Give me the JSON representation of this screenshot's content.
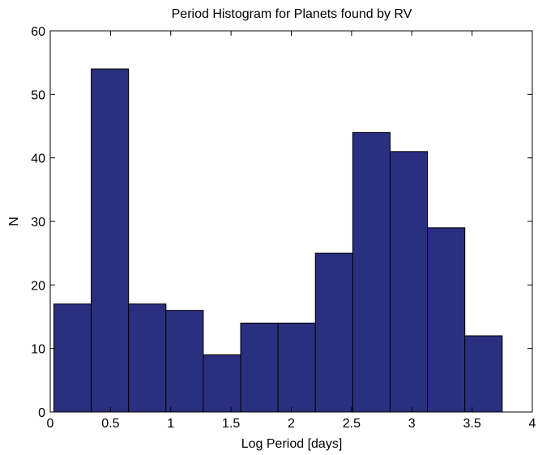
{
  "chart_data": {
    "type": "bar",
    "title": "Period Histogram for Planets found by RV",
    "xlabel": "Log Period [days]",
    "ylabel": "N",
    "xlim": [
      0,
      4
    ],
    "ylim": [
      0,
      60
    ],
    "x_ticks": [
      "0",
      "0.5",
      "1",
      "1.5",
      "2",
      "2.5",
      "3",
      "3.5",
      "4"
    ],
    "y_ticks": [
      "0",
      "10",
      "20",
      "30",
      "40",
      "50",
      "60"
    ],
    "bin_edges": [
      0.03,
      0.34,
      0.65,
      0.96,
      1.27,
      1.58,
      1.89,
      2.2,
      2.51,
      2.82,
      3.13,
      3.44,
      3.75
    ],
    "values": [
      17,
      54,
      17,
      16,
      9,
      14,
      14,
      25,
      44,
      41,
      29,
      12
    ],
    "bar_color": "#2b2f80",
    "grid": false
  }
}
